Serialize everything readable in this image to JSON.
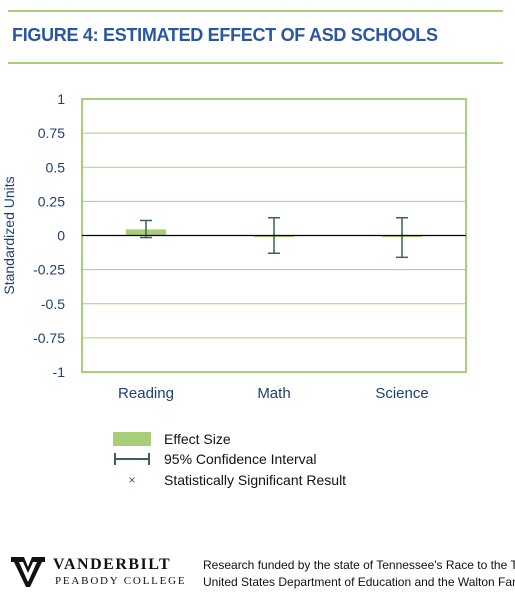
{
  "header": {
    "title": "FIGURE 4: ESTIMATED EFFECT OF ASD SCHOOLS"
  },
  "colors": {
    "rule": "#a9cf76",
    "title": "#2a56a2",
    "bar": "#a9cf76",
    "frame": "#a9cf76",
    "grid": "#a9cf76",
    "error_bar": "#3e6050",
    "axis_text": "#1f3f73"
  },
  "chart_data": {
    "type": "bar",
    "title": "",
    "xlabel": "",
    "ylabel": "Standardized Units",
    "categories": [
      "Reading",
      "Math",
      "Science"
    ],
    "series": [
      {
        "name": "Effect Size",
        "values": [
          0.045,
          0.0,
          -0.01
        ],
        "ci_low": [
          -0.015,
          -0.13,
          -0.16
        ],
        "ci_high": [
          0.11,
          0.13,
          0.13
        ]
      }
    ],
    "ylim": [
      -1,
      1
    ],
    "yticks": [
      1,
      0.75,
      0.5,
      0.25,
      0,
      -0.25,
      -0.5,
      -0.75,
      -1
    ],
    "ytick_labels": [
      "1",
      "0.75",
      "0.5",
      "0.25",
      "0",
      "-0.25",
      "-0.5",
      "-0.75",
      "-1"
    ],
    "grid": true,
    "legend_position": "bottom-left"
  },
  "legend": {
    "effect_size": "Effect Size",
    "ci": "95% Confidence Interval",
    "significant": "Statistically Significant Result",
    "significant_symbol": "×"
  },
  "footer": {
    "logo_name": "VANDERBILT",
    "logo_sub": "PEABODY COLLEGE",
    "line1": "Research funded by the state of Tennessee's Race to the Top grant from the",
    "line2": "United States Department of Education and the Walton Family Foundation"
  }
}
